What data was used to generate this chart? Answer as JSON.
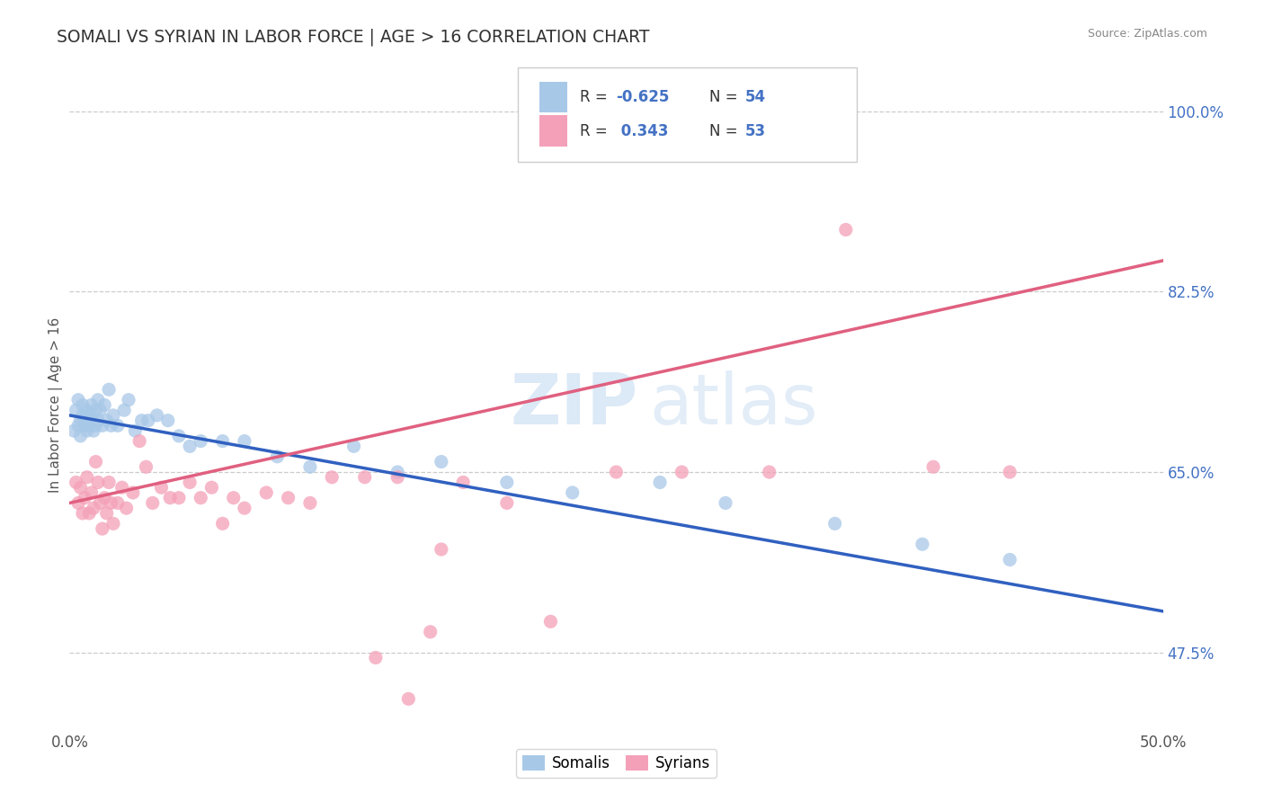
{
  "title": "SOMALI VS SYRIAN IN LABOR FORCE | AGE > 16 CORRELATION CHART",
  "source_text": "Source: ZipAtlas.com",
  "ylabel": "In Labor Force | Age > 16",
  "xlim": [
    0.0,
    0.5
  ],
  "ylim": [
    0.4,
    1.03
  ],
  "yticks": [
    0.475,
    0.65,
    0.825,
    1.0
  ],
  "ytick_labels_right": [
    "47.5%",
    "65.0%",
    "82.5%",
    "100.0%"
  ],
  "xticks": [
    0.0,
    0.05,
    0.1,
    0.15,
    0.2,
    0.25,
    0.3,
    0.35,
    0.4,
    0.45,
    0.5
  ],
  "xtick_labels": [
    "0.0%",
    "",
    "",
    "",
    "",
    "",
    "",
    "",
    "",
    "",
    "50.0%"
  ],
  "grid_yticks": [
    0.475,
    0.65,
    0.825,
    1.0
  ],
  "somali_color": "#a8c8e8",
  "syrian_color": "#f4a0b8",
  "somali_line_color": "#3060c0",
  "syrian_line_color": "#e06080",
  "somali_R": -0.625,
  "somali_N": 54,
  "syrian_R": 0.343,
  "syrian_N": 53,
  "watermark_zip": "ZIP",
  "watermark_atlas": "atlas",
  "somali_line_x0": 0.0,
  "somali_line_y0": 0.705,
  "somali_line_x1": 0.5,
  "somali_line_y1": 0.515,
  "syrian_line_x0": 0.0,
  "syrian_line_y0": 0.62,
  "syrian_line_x1": 0.5,
  "syrian_line_y1": 0.855,
  "somali_x": [
    0.002,
    0.003,
    0.004,
    0.004,
    0.005,
    0.005,
    0.006,
    0.006,
    0.007,
    0.007,
    0.008,
    0.008,
    0.009,
    0.009,
    0.01,
    0.01,
    0.011,
    0.011,
    0.012,
    0.012,
    0.013,
    0.013,
    0.014,
    0.015,
    0.016,
    0.017,
    0.018,
    0.019,
    0.02,
    0.022,
    0.025,
    0.027,
    0.03,
    0.033,
    0.036,
    0.04,
    0.045,
    0.05,
    0.055,
    0.06,
    0.07,
    0.08,
    0.095,
    0.11,
    0.13,
    0.15,
    0.17,
    0.2,
    0.23,
    0.27,
    0.3,
    0.35,
    0.39,
    0.43
  ],
  "somali_y": [
    0.69,
    0.71,
    0.695,
    0.72,
    0.7,
    0.685,
    0.705,
    0.715,
    0.695,
    0.7,
    0.71,
    0.69,
    0.695,
    0.705,
    0.7,
    0.715,
    0.69,
    0.7,
    0.71,
    0.695,
    0.7,
    0.72,
    0.71,
    0.695,
    0.715,
    0.7,
    0.73,
    0.695,
    0.705,
    0.695,
    0.71,
    0.72,
    0.69,
    0.7,
    0.7,
    0.705,
    0.7,
    0.685,
    0.675,
    0.68,
    0.68,
    0.68,
    0.665,
    0.655,
    0.675,
    0.65,
    0.66,
    0.64,
    0.63,
    0.64,
    0.62,
    0.6,
    0.58,
    0.565
  ],
  "syrian_x": [
    0.003,
    0.004,
    0.005,
    0.006,
    0.007,
    0.008,
    0.009,
    0.01,
    0.011,
    0.012,
    0.013,
    0.014,
    0.015,
    0.016,
    0.017,
    0.018,
    0.019,
    0.02,
    0.022,
    0.024,
    0.026,
    0.029,
    0.032,
    0.035,
    0.038,
    0.042,
    0.046,
    0.05,
    0.055,
    0.06,
    0.065,
    0.07,
    0.075,
    0.08,
    0.09,
    0.1,
    0.11,
    0.12,
    0.135,
    0.15,
    0.165,
    0.18,
    0.2,
    0.22,
    0.25,
    0.28,
    0.32,
    0.355,
    0.395,
    0.43,
    0.14,
    0.155,
    0.17
  ],
  "syrian_y": [
    0.64,
    0.62,
    0.635,
    0.61,
    0.625,
    0.645,
    0.61,
    0.63,
    0.615,
    0.66,
    0.64,
    0.62,
    0.595,
    0.625,
    0.61,
    0.64,
    0.62,
    0.6,
    0.62,
    0.635,
    0.615,
    0.63,
    0.68,
    0.655,
    0.62,
    0.635,
    0.625,
    0.625,
    0.64,
    0.625,
    0.635,
    0.6,
    0.625,
    0.615,
    0.63,
    0.625,
    0.62,
    0.645,
    0.645,
    0.645,
    0.495,
    0.64,
    0.62,
    0.505,
    0.65,
    0.65,
    0.65,
    0.885,
    0.655,
    0.65,
    0.47,
    0.43,
    0.575
  ]
}
